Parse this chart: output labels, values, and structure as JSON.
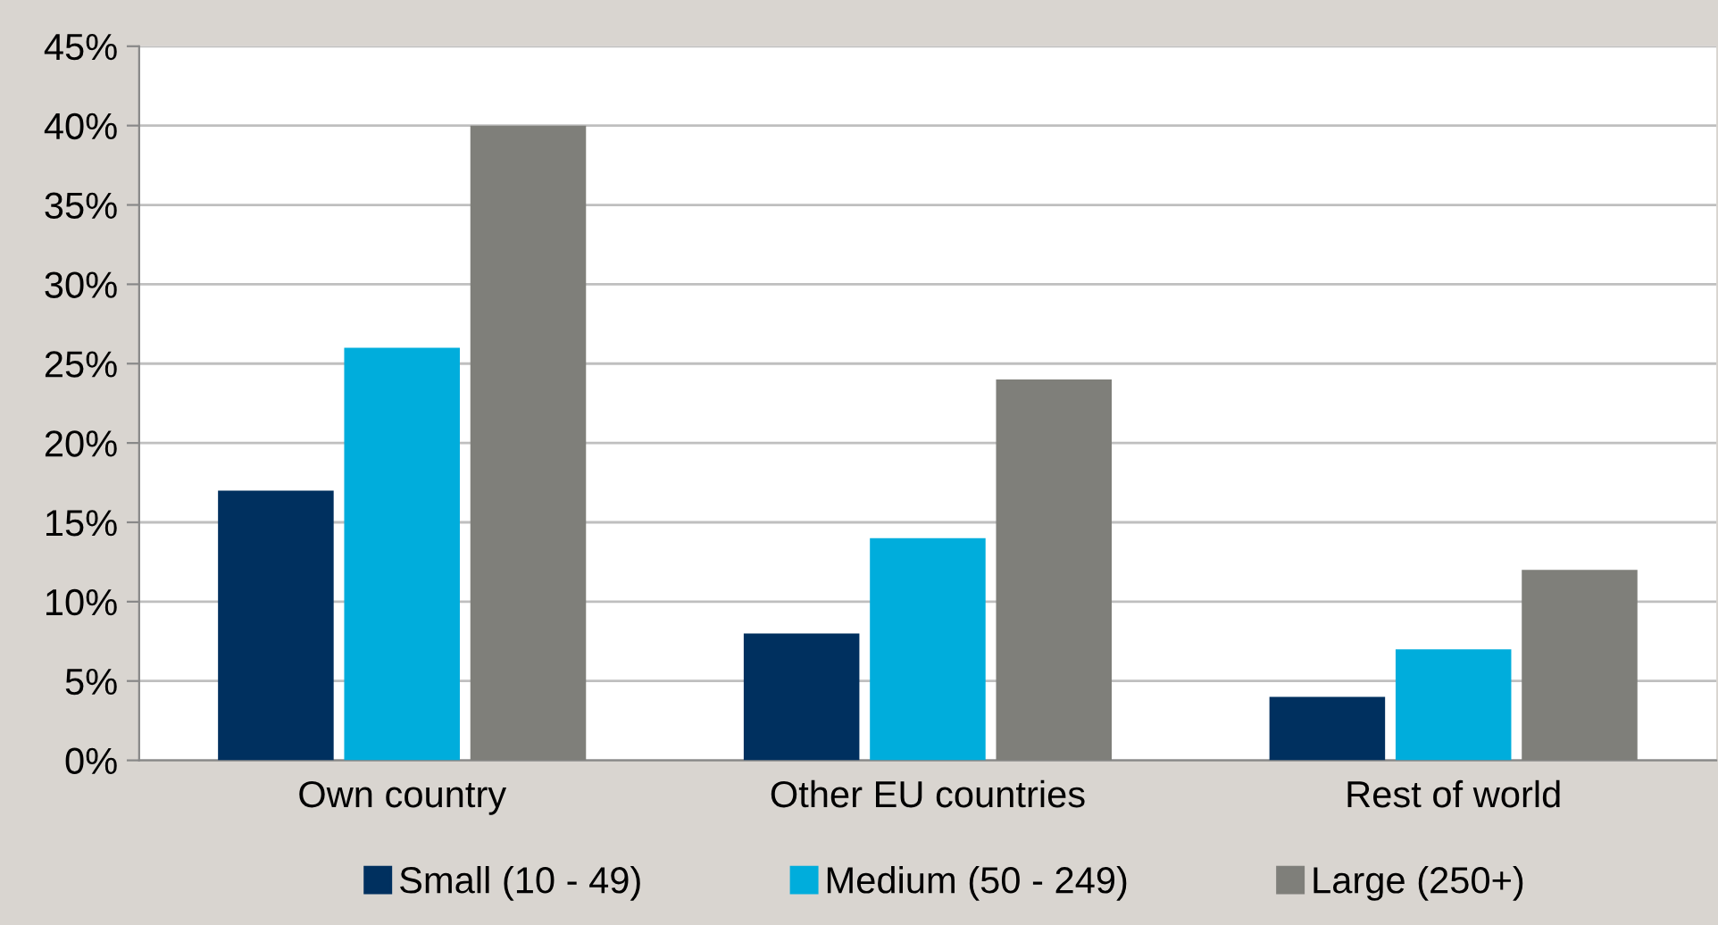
{
  "chart_data": {
    "type": "bar",
    "categories": [
      "Own country",
      "Other EU countries",
      "Rest of world"
    ],
    "series": [
      {
        "name": "Small (10 - 49)",
        "color": "#00305f",
        "values": [
          0.17,
          0.08,
          0.04
        ]
      },
      {
        "name": "Medium (50 - 249)",
        "color": "#00addc",
        "values": [
          0.26,
          0.14,
          0.07
        ]
      },
      {
        "name": "Large (250+)",
        "color": "#7f7f7a",
        "values": [
          0.4,
          0.24,
          0.12
        ]
      }
    ],
    "ylim": [
      0,
      0.45
    ],
    "yticks": [
      {
        "value": 0,
        "label": "0%"
      },
      {
        "value": 0.05,
        "label": "5%"
      },
      {
        "value": 0.1,
        "label": "10%"
      },
      {
        "value": 0.15,
        "label": "15%"
      },
      {
        "value": 0.2,
        "label": "20%"
      },
      {
        "value": 0.25,
        "label": "25%"
      },
      {
        "value": 0.3,
        "label": "30%"
      },
      {
        "value": 0.35,
        "label": "35%"
      },
      {
        "value": 0.4,
        "label": "40%"
      },
      {
        "value": 0.45,
        "label": "45%"
      }
    ],
    "grid": "y",
    "legend": "bottom"
  }
}
